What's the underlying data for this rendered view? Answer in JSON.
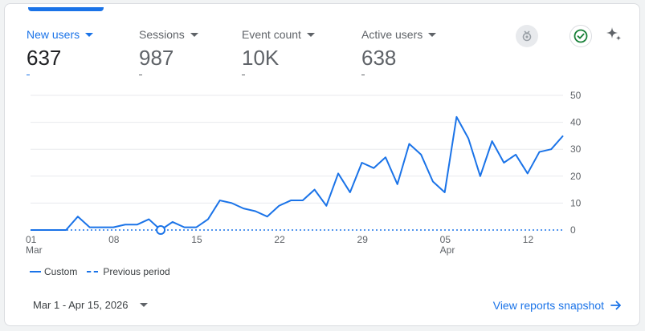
{
  "metrics": [
    {
      "label": "New users",
      "value": "637",
      "change": "-",
      "active": true
    },
    {
      "label": "Sessions",
      "value": "987",
      "change": "-",
      "active": false
    },
    {
      "label": "Event count",
      "value": "10K",
      "change": "-",
      "active": false
    },
    {
      "label": "Active users",
      "value": "638",
      "change": "-",
      "active": false
    }
  ],
  "icons": {
    "insights": "insights-badge-icon",
    "check": "check-circle-icon",
    "sparkle": "sparkle-icon"
  },
  "colors": {
    "accent": "#1a73e8",
    "check": "#188038",
    "grid": "#e8eaed",
    "axis_text": "#5f6368"
  },
  "chart_data": {
    "type": "line",
    "ylim": [
      0,
      50
    ],
    "yticks": [
      "0",
      "10",
      "20",
      "30",
      "40",
      "50"
    ],
    "x_tick_labels": [
      {
        "index": 0,
        "day": "01",
        "month": "Mar"
      },
      {
        "index": 7,
        "day": "08",
        "month": ""
      },
      {
        "index": 14,
        "day": "15",
        "month": ""
      },
      {
        "index": 21,
        "day": "22",
        "month": ""
      },
      {
        "index": 28,
        "day": "29",
        "month": ""
      },
      {
        "index": 35,
        "day": "05",
        "month": "Apr"
      },
      {
        "index": 42,
        "day": "12",
        "month": ""
      }
    ],
    "series": [
      {
        "name": "Custom",
        "style": "solid",
        "values": [
          0,
          0,
          0,
          0,
          5,
          1,
          1,
          1,
          2,
          2,
          4,
          0,
          3,
          1,
          1,
          4,
          11,
          10,
          8,
          7,
          5,
          9,
          11,
          11,
          15,
          9,
          21,
          14,
          25,
          23,
          27,
          17,
          32,
          28,
          18,
          14,
          42,
          34,
          20,
          33,
          25,
          28,
          21,
          29,
          30,
          35
        ]
      },
      {
        "name": "Previous period",
        "style": "dashed",
        "values": [
          0,
          0,
          0,
          0,
          0,
          0,
          0,
          0,
          0,
          0,
          0,
          0,
          0,
          0,
          0,
          0,
          0,
          0,
          0,
          0,
          0,
          0,
          0,
          0,
          0,
          0,
          0,
          0,
          0,
          0,
          0,
          0,
          0,
          0,
          0,
          0,
          0,
          0,
          0,
          0,
          0,
          0,
          0,
          0,
          0,
          0
        ]
      }
    ],
    "highlight_index": 11
  },
  "footer": {
    "date_range": "Mar 1 - Apr 15, 2026",
    "snapshot_label": "View reports snapshot"
  }
}
